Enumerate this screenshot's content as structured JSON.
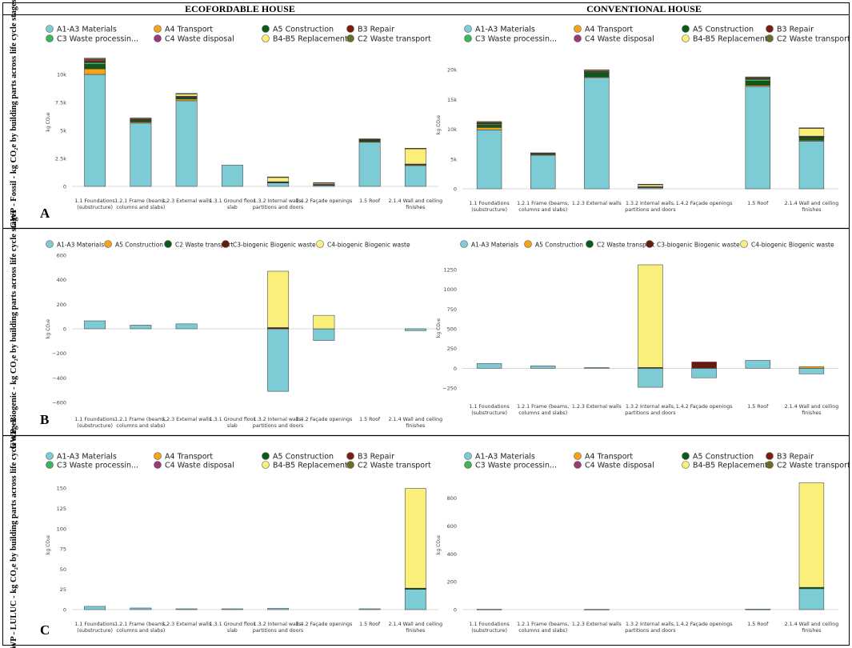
{
  "columns": {
    "left": "ECOFORDABLE HOUSE",
    "right": "CONVENTIONAL HOUSE"
  },
  "rows": [
    {
      "id": "A",
      "letter": "A",
      "title": "GWP - Fossil - kg CO₂e by building parts across life cycle stages"
    },
    {
      "id": "B",
      "letter": "B",
      "title": "GWP - Biogenic - kg CO₂e by building parts across life cycle stages"
    },
    {
      "id": "C",
      "letter": "C",
      "title": "GWP - LULUC - kg CO₂e by building parts across life cycle stages"
    }
  ],
  "legends": {
    "full": [
      {
        "name": "A1-A3 Materials",
        "color": "#7ccbd5"
      },
      {
        "name": "A4 Transport",
        "color": "#f7a21b"
      },
      {
        "name": "A5 Construction",
        "color": "#0b5a1a"
      },
      {
        "name": "B3 Repair",
        "color": "#7a1f0f"
      },
      {
        "name": "C3 Waste processin...",
        "color": "#3db55a"
      },
      {
        "name": "C4 Waste disposal",
        "color": "#9b3a7a"
      },
      {
        "name": "B4-B5 Replacement",
        "color": "#f9ef7a"
      },
      {
        "name": "C2 Waste transport",
        "color": "#6e6a2a"
      }
    ],
    "biogenic": [
      {
        "name": "A1-A3 Materials",
        "color": "#7ccbd5"
      },
      {
        "name": "A5 Construction",
        "color": "#f7a21b"
      },
      {
        "name": "C2 Waste transport",
        "color": "#0b5a1a"
      },
      {
        "name": "C3-biogenic Biogenic waste ...",
        "color": "#6a1a0c"
      },
      {
        "name": "C4-biogenic Biogenic waste",
        "color": "#f9ef7a"
      }
    ]
  },
  "chart_data": [
    {
      "id": "A-left",
      "type": "bar",
      "stacked": true,
      "title": "ECOFORDABLE HOUSE",
      "ylabel": "kg CO2e",
      "ylim": [
        0,
        11500
      ],
      "yticks": [
        0,
        2500,
        5000,
        7500,
        10000
      ],
      "yticklabels": [
        "0",
        "2.5k",
        "5k",
        "7.5k",
        "10k"
      ],
      "categories": [
        "1.1 Foundations (substructure)",
        "1.2.1 Frame (beams, columns and slabs)",
        "1.2.3 External walls",
        "1.3.1 Ground floor slab",
        "1.3.2 Internal walls, partitions and doors",
        "1.4.2 Façade openings",
        "1.5 Roof",
        "2.1.4 Wall and ceiling finishes"
      ],
      "series": [
        {
          "name": "A1-A3 Materials",
          "color": "#7ccbd5",
          "values": [
            10000,
            5650,
            7650,
            1900,
            350,
            150,
            3950,
            1900
          ]
        },
        {
          "name": "A4 Transport",
          "color": "#f7a21b",
          "values": [
            500,
            100,
            150,
            0,
            20,
            10,
            50,
            20
          ]
        },
        {
          "name": "A5 Construction",
          "color": "#0b5a1a",
          "values": [
            400,
            150,
            150,
            0,
            20,
            10,
            150,
            50
          ]
        },
        {
          "name": "C3 Waste processin...",
          "color": "#3db55a",
          "values": [
            150,
            50,
            50,
            0,
            10,
            5,
            30,
            10
          ]
        },
        {
          "name": "B3 Repair",
          "color": "#7a1f0f",
          "values": [
            150,
            30,
            30,
            0,
            10,
            5,
            20,
            10
          ]
        },
        {
          "name": "C4 Waste disposal",
          "color": "#9b3a7a",
          "values": [
            100,
            30,
            30,
            0,
            10,
            5,
            20,
            10
          ]
        },
        {
          "name": "B4-B5 Replacement",
          "color": "#f9ef7a",
          "values": [
            0,
            50,
            200,
            0,
            420,
            150,
            0,
            1400
          ]
        },
        {
          "name": "C2 Waste transport",
          "color": "#6e6a2a",
          "values": [
            150,
            50,
            40,
            0,
            10,
            5,
            30,
            10
          ]
        }
      ]
    },
    {
      "id": "A-right",
      "type": "bar",
      "stacked": true,
      "title": "CONVENTIONAL HOUSE",
      "ylabel": "kg CO2e",
      "ylim": [
        0,
        21500
      ],
      "yticks": [
        0,
        5000,
        10000,
        15000,
        20000
      ],
      "yticklabels": [
        "0",
        "5k",
        "10k",
        "15k",
        "20k"
      ],
      "categories": [
        "1.1 Foundations (substructure)",
        "1.2.1 Frame (beams, columns and slabs)",
        "1.2.3 External walls",
        "1.3.2 Internal walls, partitions and doors",
        "1.4.2 Façade openings",
        "1.5 Roof",
        "2.1.4 Wall and ceiling finishes"
      ],
      "series": [
        {
          "name": "A1-A3 Materials",
          "color": "#7ccbd5",
          "values": [
            9900,
            5700,
            18700,
            300,
            0,
            17200,
            8000
          ]
        },
        {
          "name": "A4 Transport",
          "color": "#f7a21b",
          "values": [
            400,
            50,
            100,
            20,
            0,
            200,
            150
          ]
        },
        {
          "name": "A5 Construction",
          "color": "#0b5a1a",
          "values": [
            400,
            100,
            700,
            20,
            0,
            700,
            500
          ]
        },
        {
          "name": "C3 Waste processin...",
          "color": "#3db55a",
          "values": [
            200,
            50,
            100,
            10,
            0,
            300,
            100
          ]
        },
        {
          "name": "B3 Repair",
          "color": "#7a1f0f",
          "values": [
            100,
            50,
            100,
            10,
            0,
            100,
            50
          ]
        },
        {
          "name": "C4 Waste disposal",
          "color": "#9b3a7a",
          "values": [
            100,
            50,
            100,
            10,
            0,
            100,
            50
          ]
        },
        {
          "name": "B4-B5 Replacement",
          "color": "#f9ef7a",
          "values": [
            0,
            0,
            50,
            400,
            0,
            0,
            1300
          ]
        },
        {
          "name": "C2 Waste transport",
          "color": "#6e6a2a",
          "values": [
            200,
            50,
            150,
            10,
            0,
            200,
            100
          ]
        }
      ]
    },
    {
      "id": "B-left",
      "type": "bar",
      "stacked": true,
      "title": "ECOFORDABLE HOUSE",
      "ylabel": "kg CO2e",
      "ylim": [
        -620,
        620
      ],
      "yticks": [
        -600,
        -400,
        -200,
        0,
        200,
        400,
        600
      ],
      "yticklabels": [
        "−600",
        "−400",
        "−200",
        "0",
        "200",
        "400",
        "600"
      ],
      "categories": [
        "1.1 Foundations (substructure)",
        "1.2.1 Frame (beams, columns and slabs)",
        "1.2.3 External walls",
        "1.3.1 Ground floor slab",
        "1.3.2 Internal walls, partitions and doors",
        "1.4.2 Façade openings",
        "1.5 Roof",
        "2.1.4 Wall and ceiling finishes"
      ],
      "series": [
        {
          "name": "A1-A3 Materials",
          "color": "#7ccbd5",
          "values": [
            65,
            30,
            40,
            0,
            -510,
            -95,
            0,
            -15
          ]
        },
        {
          "name": "A5 Construction",
          "color": "#f7a21b",
          "values": [
            0,
            0,
            0,
            0,
            0,
            0,
            0,
            0
          ]
        },
        {
          "name": "C2 Waste transport",
          "color": "#0b5a1a",
          "values": [
            0,
            0,
            0,
            0,
            0,
            0,
            0,
            0
          ]
        },
        {
          "name": "C3-biogenic Biogenic waste ...",
          "color": "#6a1a0c",
          "values": [
            0,
            0,
            0,
            0,
            10,
            0,
            0,
            0
          ]
        },
        {
          "name": "C4-biogenic Biogenic waste",
          "color": "#f9ef7a",
          "values": [
            0,
            0,
            0,
            0,
            460,
            110,
            0,
            0
          ]
        }
      ]
    },
    {
      "id": "B-right",
      "type": "bar",
      "stacked": true,
      "title": "CONVENTIONAL HOUSE",
      "ylabel": "kg CO2e",
      "ylim": [
        -300,
        1320
      ],
      "yticks": [
        -250,
        0,
        250,
        500,
        750,
        1000,
        1250
      ],
      "yticklabels": [
        "−250",
        "0",
        "250",
        "500",
        "750",
        "1000",
        "1250"
      ],
      "categories": [
        "1.1 Foundations (substructure)",
        "1.2.1 Frame (beams, columns and slabs)",
        "1.2.3 External walls",
        "1.3.2 Internal walls, partitions and doors",
        "1.4.2 Façade openings",
        "1.5 Roof",
        "2.1.4 Wall and ceiling finishes"
      ],
      "series": [
        {
          "name": "A1-A3 Materials",
          "color": "#7ccbd5",
          "values": [
            60,
            30,
            10,
            -240,
            -120,
            100,
            -70
          ]
        },
        {
          "name": "A5 Construction",
          "color": "#f7a21b",
          "values": [
            0,
            0,
            0,
            0,
            0,
            0,
            20
          ]
        },
        {
          "name": "C2 Waste transport",
          "color": "#0b5a1a",
          "values": [
            0,
            0,
            0,
            0,
            0,
            0,
            0
          ]
        },
        {
          "name": "C3-biogenic Biogenic waste ...",
          "color": "#6a1a0c",
          "values": [
            0,
            0,
            0,
            10,
            80,
            0,
            0
          ]
        },
        {
          "name": "C4-biogenic Biogenic waste",
          "color": "#f9ef7a",
          "values": [
            0,
            0,
            0,
            1300,
            0,
            0,
            0
          ]
        }
      ]
    },
    {
      "id": "C-left",
      "type": "bar",
      "stacked": true,
      "title": "ECOFORDABLE HOUSE",
      "ylabel": "kg CO2e",
      "ylim": [
        0,
        160
      ],
      "yticks": [
        0,
        25,
        50,
        75,
        100,
        125,
        150
      ],
      "yticklabels": [
        "0",
        "25",
        "50",
        "75",
        "100",
        "125",
        "150"
      ],
      "categories": [
        "1.1 Foundations (substructure)",
        "1.2.1 Frame (beams, columns and slabs)",
        "1.2.3 External walls",
        "1.3.1 Ground floor slab",
        "1.3.2 Internal walls, partitions and doors",
        "1.4.2 Façade openings",
        "1.5 Roof",
        "2.1.4 Wall and ceiling finishes"
      ],
      "series": [
        {
          "name": "A1-A3 Materials",
          "color": "#7ccbd5",
          "values": [
            4,
            2,
            1,
            1,
            1.5,
            0,
            1,
            25
          ]
        },
        {
          "name": "A4 Transport",
          "color": "#f7a21b",
          "values": [
            0,
            0,
            0,
            0,
            0,
            0,
            0,
            0
          ]
        },
        {
          "name": "A5 Construction",
          "color": "#0b5a1a",
          "values": [
            0,
            0,
            0,
            0,
            0,
            0,
            0,
            1.5
          ]
        },
        {
          "name": "B3 Repair",
          "color": "#7a1f0f",
          "values": [
            0,
            0,
            0,
            0,
            0,
            0,
            0,
            0
          ]
        },
        {
          "name": "B4-B5 Replacement",
          "color": "#f9ef7a",
          "values": [
            0,
            0,
            0,
            0,
            0,
            0,
            0,
            123
          ]
        }
      ]
    },
    {
      "id": "C-right",
      "type": "bar",
      "stacked": true,
      "title": "CONVENTIONAL HOUSE",
      "ylabel": "kg CO2e",
      "ylim": [
        0,
        930
      ],
      "yticks": [
        0,
        200,
        400,
        600,
        800
      ],
      "yticklabels": [
        "0",
        "200",
        "400",
        "600",
        "800"
      ],
      "categories": [
        "1.1 Foundations (substructure)",
        "1.2.1 Frame (beams, columns and slabs)",
        "1.2.3 External walls",
        "1.3.2 Internal walls, partitions and doors",
        "1.4.2 Façade openings",
        "1.5 Roof",
        "2.1.4 Wall and ceiling finishes"
      ],
      "series": [
        {
          "name": "A1-A3 Materials",
          "color": "#7ccbd5",
          "values": [
            3,
            0,
            2,
            0,
            0,
            4,
            150
          ]
        },
        {
          "name": "A5 Construction",
          "color": "#0b5a1a",
          "values": [
            0,
            0,
            0,
            0,
            0,
            0,
            10
          ]
        },
        {
          "name": "B4-B5 Replacement",
          "color": "#f9ef7a",
          "values": [
            0,
            0,
            0,
            0,
            0,
            0,
            750
          ]
        }
      ]
    }
  ]
}
